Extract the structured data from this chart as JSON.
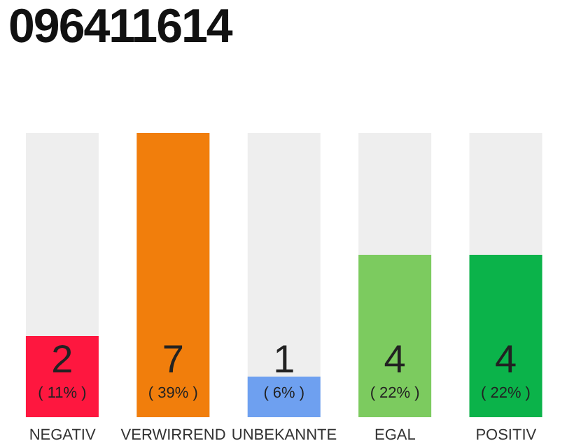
{
  "chart_data": {
    "type": "bar",
    "title": "096411614",
    "categories": [
      "NEGATIV",
      "VERWIRREND",
      "UNBEKANNTE",
      "EGAL",
      "POSITIV"
    ],
    "values": [
      2,
      7,
      1,
      4,
      4
    ],
    "colors": [
      "#fe173f",
      "#f17e0c",
      "#6ea0f0",
      "#7ccb5f",
      "#0bb34a"
    ],
    "data_labels": true,
    "tick_labels": "x",
    "grid": false,
    "legend": false,
    "annotations": [
      "( 11% )",
      "( 39% )",
      "( 6% )",
      "( 22% )",
      "( 22% )"
    ]
  }
}
